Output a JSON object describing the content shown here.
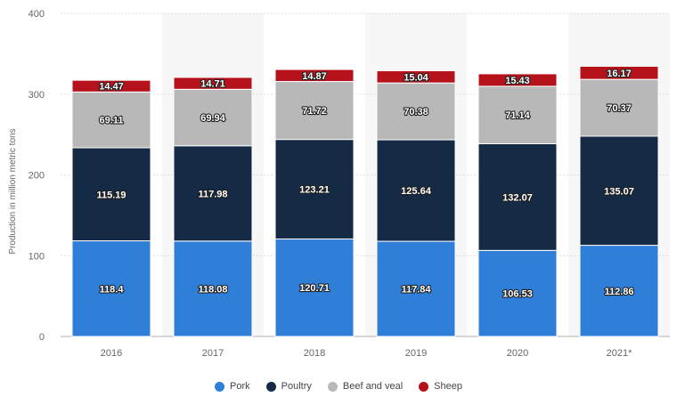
{
  "chart_data": {
    "type": "bar",
    "stacked": true,
    "categories": [
      "2016",
      "2017",
      "2018",
      "2019",
      "2020",
      "2021*"
    ],
    "series": [
      {
        "name": "Pork",
        "color": "#2f7ed8",
        "values": [
          118.4,
          118.08,
          120.71,
          117.84,
          106.53,
          112.86
        ],
        "labels": [
          "118.4",
          "118.08",
          "120.71",
          "117.84",
          "106.53",
          "112.86"
        ]
      },
      {
        "name": "Poultry",
        "color": "#152a44",
        "values": [
          115.19,
          117.98,
          123.21,
          125.64,
          132.07,
          135.07
        ],
        "labels": [
          "115.19",
          "117.98",
          "123.21",
          "125.64",
          "132.07",
          "135.07"
        ]
      },
      {
        "name": "Beef and veal",
        "color": "#b8b8b8",
        "values": [
          69.11,
          69.94,
          71.72,
          70.38,
          71.14,
          70.37
        ],
        "labels": [
          "69.11",
          "69.94",
          "71.72",
          "70.38",
          "71.14",
          "70.37"
        ]
      },
      {
        "name": "Sheep",
        "color": "#b5121b",
        "values": [
          14.47,
          14.71,
          14.87,
          15.04,
          15.43,
          16.17
        ],
        "labels": [
          "14.47",
          "14.71",
          "14.87",
          "15.04",
          "15.43",
          "16.17"
        ]
      }
    ],
    "ylabel": "Production in million metric tons",
    "ylim": [
      0,
      400
    ],
    "yticks": [
      "0",
      "100",
      "200",
      "300",
      "400"
    ],
    "grid": true,
    "legend_position": "bottom"
  }
}
